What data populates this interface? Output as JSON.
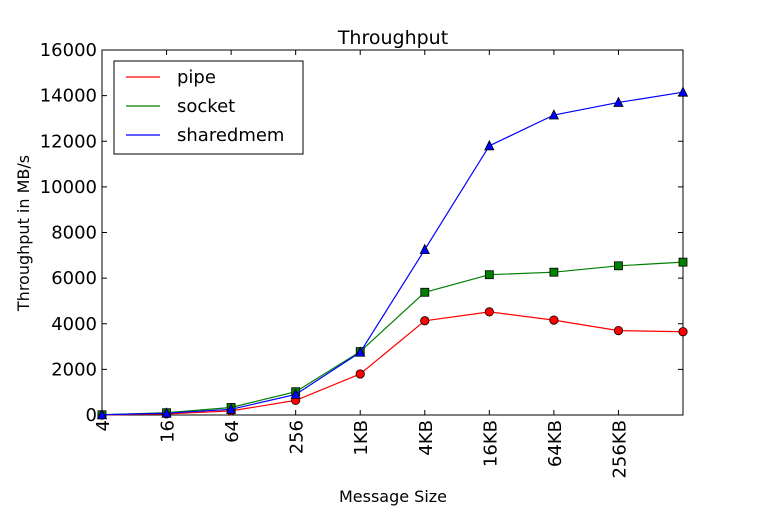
{
  "chart_data": {
    "type": "line",
    "title": "Throughput",
    "xlabel": "Message Size",
    "ylabel": "Throughput in MB/s",
    "x_categories": [
      "4",
      "16",
      "64",
      "256",
      "1KB",
      "4KB",
      "16KB",
      "64KB",
      "256KB",
      ""
    ],
    "x_tick_labels": [
      "4",
      "16",
      "64",
      "256",
      "1KB",
      "4KB",
      "16KB",
      "64KB",
      "256KB"
    ],
    "ylim": [
      0,
      16000
    ],
    "yticks": [
      0,
      2000,
      4000,
      6000,
      8000,
      10000,
      12000,
      14000,
      16000
    ],
    "grid": false,
    "legend_position": "top-left",
    "series": [
      {
        "name": "pipe",
        "color": "#ff0000",
        "marker": "circle",
        "values": [
          0,
          50,
          180,
          640,
          1800,
          4130,
          4520,
          4160,
          3700,
          3650
        ]
      },
      {
        "name": "socket",
        "color": "#008000",
        "marker": "square",
        "values": [
          10,
          100,
          330,
          1020,
          2780,
          5380,
          6150,
          6260,
          6540,
          6700
        ]
      },
      {
        "name": "sharedmem",
        "color": "#0000ff",
        "marker": "triangle",
        "values": [
          10,
          80,
          250,
          900,
          2750,
          7250,
          11800,
          13150,
          13700,
          14150
        ]
      }
    ]
  }
}
